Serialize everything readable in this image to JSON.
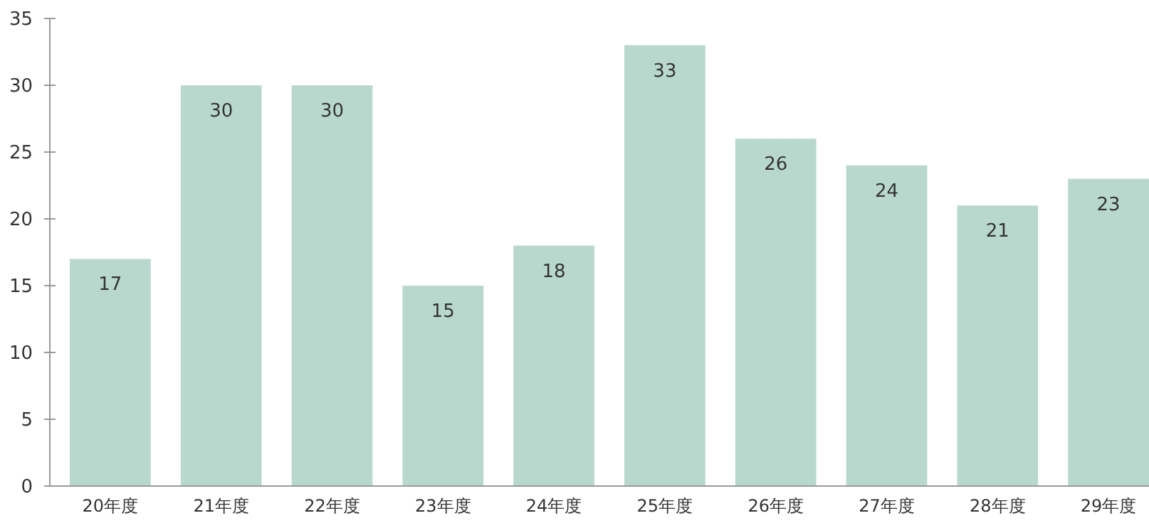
{
  "chart_data": {
    "type": "bar",
    "categories": [
      "20年度",
      "21年度",
      "22年度",
      "23年度",
      "24年度",
      "25年度",
      "26年度",
      "27年度",
      "28年度",
      "29年度"
    ],
    "values": [
      17,
      30,
      30,
      15,
      18,
      33,
      26,
      24,
      21,
      23
    ],
    "color": "#b9d8cd",
    "ylim": [
      0,
      35
    ],
    "yticks": [
      0,
      5,
      10,
      15,
      20,
      25,
      30,
      35
    ],
    "grid": false,
    "data_labels": true
  }
}
